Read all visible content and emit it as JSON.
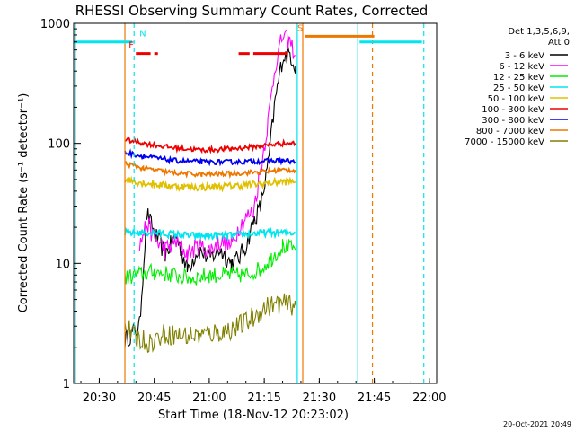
{
  "chart_data": {
    "type": "line",
    "title": "RHESSI Observing Summary Count Rates, Corrected",
    "xlabel": "Start Time (18-Nov-12 20:23:02)",
    "ylabel": "Corrected Count Rate (s⁻¹ detector⁻¹)",
    "yscale": "log",
    "ylim": [
      1,
      1000
    ],
    "xlim": [
      "20:23:02",
      "22:02:00"
    ],
    "x_ticks": [
      "20:30",
      "20:45",
      "21:00",
      "21:15",
      "21:30",
      "21:45",
      "22:00"
    ],
    "y_ticks": [
      "1",
      "10",
      "100",
      "1000"
    ],
    "grid": false,
    "legend": {
      "position": "top-right",
      "header": [
        "Det 1,3,5,6,9,",
        "Att 0"
      ],
      "entries": [
        {
          "label": "3 - 6 keV",
          "color": "#000000"
        },
        {
          "label": "6 - 12 keV",
          "color": "#ff00ff"
        },
        {
          "label": "12 - 25 keV",
          "color": "#00ee00"
        },
        {
          "label": "25 - 50 keV",
          "color": "#00e5ee"
        },
        {
          "label": "50 - 100 keV",
          "color": "#e0c000"
        },
        {
          "label": "100 - 300 keV",
          "color": "#ee0000"
        },
        {
          "label": "300 - 800 keV",
          "color": "#0000ee"
        },
        {
          "label": "800 - 7000 keV",
          "color": "#ee7700"
        },
        {
          "label": "7000 - 15000 keV",
          "color": "#808000"
        }
      ]
    },
    "series": [
      {
        "name": "3 - 6 keV",
        "color": "#000000",
        "x": [
          "20:37",
          "20:39",
          "20:41",
          "20:43",
          "20:45",
          "20:48",
          "20:51",
          "20:54",
          "20:57",
          "21:00",
          "21:03",
          "21:06",
          "21:08",
          "21:10",
          "21:12",
          "21:14",
          "21:16",
          "21:18",
          "21:20",
          "21:22",
          "21:23.5"
        ],
        "y": [
          2.3,
          2.6,
          3,
          26,
          18,
          12,
          17,
          9,
          13,
          11,
          13,
          10,
          11,
          14,
          22,
          30,
          65,
          230,
          520,
          560,
          440
        ]
      },
      {
        "name": "6 - 12 keV",
        "color": "#ff00ff",
        "x": [
          "20:41",
          "20:43",
          "20:45",
          "20:48",
          "20:51",
          "20:54",
          "20:57",
          "21:00",
          "21:03",
          "21:06",
          "21:08",
          "21:10",
          "21:12",
          "21:14",
          "21:16",
          "21:18",
          "21:20",
          "21:22",
          "21:23.5"
        ],
        "y": [
          14,
          22,
          16,
          13,
          15,
          12,
          14,
          13,
          15,
          14,
          20,
          24,
          27,
          60,
          150,
          450,
          780,
          700,
          540
        ]
      },
      {
        "name": "12 - 25 keV",
        "color": "#00ee00",
        "x": [
          "20:37",
          "20:40",
          "20:45",
          "20:50",
          "20:55",
          "21:00",
          "21:05",
          "21:10",
          "21:14",
          "21:17",
          "21:20",
          "21:23.5"
        ],
        "y": [
          7.5,
          8,
          8.5,
          8,
          7.5,
          8,
          8,
          8,
          9,
          11,
          14,
          13
        ]
      },
      {
        "name": "25 - 50 keV",
        "color": "#00e5ee",
        "x": [
          "20:37",
          "20:45",
          "20:55",
          "21:05",
          "21:15",
          "21:23.5"
        ],
        "y": [
          18,
          18,
          17,
          17,
          18,
          18
        ]
      },
      {
        "name": "50 - 100 keV",
        "color": "#e0c000",
        "x": [
          "20:37",
          "20:42",
          "20:50",
          "20:58",
          "21:06",
          "21:14",
          "21:20",
          "21:23.5"
        ],
        "y": [
          50,
          47,
          44,
          43,
          44,
          46,
          48,
          48
        ]
      },
      {
        "name": "100 - 300 keV",
        "color": "#ee0000",
        "x": [
          "20:37",
          "20:42",
          "20:50",
          "20:58",
          "21:06",
          "21:14",
          "21:20",
          "21:23.5"
        ],
        "y": [
          108,
          100,
          92,
          88,
          90,
          95,
          100,
          100
        ]
      },
      {
        "name": "300 - 800 keV",
        "color": "#0000ee",
        "x": [
          "20:37",
          "20:42",
          "20:50",
          "20:58",
          "21:06",
          "21:14",
          "21:20",
          "21:23.5"
        ],
        "y": [
          84,
          78,
          72,
          70,
          70,
          71,
          72,
          70
        ]
      },
      {
        "name": "800 - 7000 keV",
        "color": "#ee7700",
        "x": [
          "20:37",
          "20:42",
          "20:50",
          "20:58",
          "21:06",
          "21:14",
          "21:20",
          "21:23.5"
        ],
        "y": [
          68,
          62,
          57,
          55,
          56,
          58,
          60,
          60
        ]
      },
      {
        "name": "7000 - 15000 keV",
        "color": "#808000",
        "x": [
          "20:37",
          "20:40",
          "20:44",
          "20:48",
          "20:52",
          "20:56",
          "21:00",
          "21:04",
          "21:08",
          "21:12",
          "21:15",
          "21:19",
          "21:23.5"
        ],
        "y": [
          3,
          2.4,
          2.2,
          2.6,
          2.5,
          2.5,
          2.6,
          2.7,
          3,
          3.5,
          4.3,
          4.6,
          4.5
        ]
      }
    ],
    "flag_bars": [
      {
        "label": "N",
        "color": "#00e5ee",
        "y": 700,
        "segments": [
          [
            "20:23:02",
            "20:39"
          ],
          [
            "21:41",
            "21:58"
          ]
        ]
      },
      {
        "label": "F",
        "color": "#ee0000",
        "y": 560,
        "segments": [
          [
            "20:40",
            "20:44"
          ],
          [
            "20:45",
            "20:46"
          ],
          [
            "21:08",
            "21:11"
          ],
          [
            "21:12",
            "21:21.5"
          ]
        ]
      },
      {
        "label": "S",
        "color": "#ee7700",
        "y": 780,
        "segments": [
          [
            "21:26",
            "21:45"
          ]
        ]
      }
    ],
    "vertical_lines": [
      {
        "x": "20:23.5",
        "color": "#00e5ee",
        "style": "solid"
      },
      {
        "x": "20:39.5",
        "color": "#00e5ee",
        "style": "dashed"
      },
      {
        "x": "20:37",
        "color": "#ee7700",
        "style": "solid"
      },
      {
        "x": "21:24",
        "color": "#00e5ee",
        "style": "solid"
      },
      {
        "x": "21:25.5",
        "color": "#ee7700",
        "style": "solid"
      },
      {
        "x": "21:40.5",
        "color": "#00e5ee",
        "style": "solid"
      },
      {
        "x": "21:44.5",
        "color": "#ee7700",
        "style": "dashed"
      },
      {
        "x": "21:58.5",
        "color": "#00e5ee",
        "style": "dashed"
      }
    ],
    "footer_timestamp": "20-Oct-2021 20:49"
  }
}
